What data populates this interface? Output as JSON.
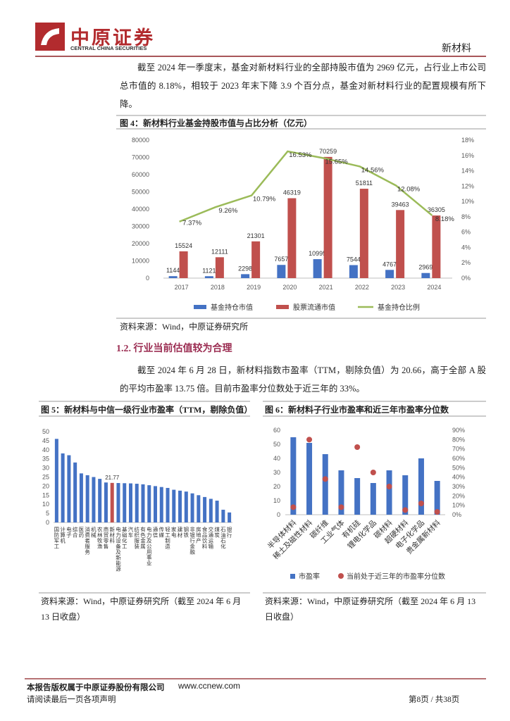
{
  "header": {
    "company": "中原证券",
    "company_en": "CENTRAL CHINA SECURITIES",
    "section": "新材料"
  },
  "paragraphs": [
    "截至 2024 年一季度末，基金对新材料行业的全部持股市值为 2969 亿元，占行业上市公司总市值的 8.18%，相较于 2023 年末下降 3.9 个百分点，基金对新材料行业的配置规模有所下降。",
    "截至 2024 年 6 月 28 日，新材料指数市盈率（TTM，剔除负值）为 20.66，高于全部 A 股的平均市盈率 13.75 倍。目前市盈率分位数处于近三年的 33%。"
  ],
  "section_heading": "1.2. 行业当前估值较为合理",
  "chart_data": [
    {
      "type": "bar-line",
      "title": "图 4：新材料行业基金持股市值与占比分析（亿元）",
      "source": "资料来源：Wind，中原证券研究所",
      "data_labels": true,
      "categories": [
        "2017",
        "2018",
        "2019",
        "2020",
        "2021",
        "2022",
        "2023",
        "2024"
      ],
      "series": [
        {
          "name": "基金持仓市值",
          "kind": "bar",
          "color": "#4472c4",
          "values": [
            1144,
            1121,
            2298,
            7657,
            10995,
            7544,
            4767,
            2969
          ]
        },
        {
          "name": "股票流通市值",
          "kind": "bar",
          "color": "#c0504d",
          "values": [
            15524,
            12111,
            21301,
            46319,
            70259,
            51811,
            39463,
            36305
          ]
        },
        {
          "name": "基金持仓比例",
          "kind": "line",
          "axis": "y2",
          "color": "#9bbb59",
          "values": [
            7.37,
            9.26,
            10.79,
            16.53,
            15.65,
            14.56,
            12.08,
            8.18
          ],
          "value_labels": [
            "7.37%",
            "9.26%",
            "10.79%",
            "16.53%",
            "15.65%",
            "14.56%",
            "12.08%",
            "8.18%"
          ]
        }
      ],
      "ylim": [
        0,
        80000
      ],
      "yticks": [
        0,
        10000,
        20000,
        30000,
        40000,
        50000,
        60000,
        70000,
        80000
      ],
      "y2lim": [
        0,
        18
      ],
      "y2ticks": [
        {
          "value": 0,
          "label": "0%"
        },
        {
          "value": 2,
          "label": "2%"
        },
        {
          "value": 4,
          "label": "4%"
        },
        {
          "value": 6,
          "label": "6%"
        },
        {
          "value": 8,
          "label": "8%"
        },
        {
          "value": 10,
          "label": "10%"
        },
        {
          "value": 12,
          "label": "12%"
        },
        {
          "value": 14,
          "label": "14%"
        },
        {
          "value": 16,
          "label": "16%"
        },
        {
          "value": 18,
          "label": "18%"
        }
      ]
    },
    {
      "type": "bar",
      "title": "图 5：新材料与中信一级行业市盈率（TTM，剔除负值）",
      "source": "资料来源：Wind，中原证券研究所（截至 2024 年 6 月 13 日收盘）",
      "categories": [
        "国防军工",
        "计算机",
        "电子",
        "综合",
        "医药",
        "消费者服务",
        "机械",
        "农林牧渔",
        "商贸零售",
        "新材料",
        "电力设备及新能源",
        "基础化工",
        "汽车",
        "纺织服装",
        "有色金属",
        "电力及公用事业",
        "通信",
        "传媒",
        "轻工制造",
        "家电",
        "建材",
        "钢铁",
        "非银行金融",
        "房地产",
        "食品饮料",
        "交通运输",
        "煤炭",
        "石油石化",
        "银行"
      ],
      "values": [
        46,
        38,
        37,
        33,
        27,
        26,
        25,
        24,
        22,
        21.77,
        21.7,
        21.6,
        21.5,
        21.3,
        21,
        20.5,
        20,
        19.5,
        19,
        18,
        17.5,
        17,
        16,
        15,
        14,
        13,
        12,
        7,
        5.5
      ],
      "value_labels": [
        null,
        null,
        null,
        null,
        null,
        null,
        null,
        null,
        null,
        "21.77",
        null,
        null,
        null,
        null,
        null,
        null,
        null,
        null,
        null,
        null,
        null,
        null,
        null,
        null,
        null,
        null,
        null,
        null,
        null
      ],
      "colors": [
        "#4472c4",
        "#4472c4",
        "#4472c4",
        "#4472c4",
        "#4472c4",
        "#4472c4",
        "#4472c4",
        "#4472c4",
        "#4472c4",
        "#c0504d",
        "#4472c4",
        "#4472c4",
        "#4472c4",
        "#4472c4",
        "#4472c4",
        "#4472c4",
        "#4472c4",
        "#4472c4",
        "#4472c4",
        "#4472c4",
        "#4472c4",
        "#4472c4",
        "#4472c4",
        "#4472c4",
        "#4472c4",
        "#4472c4",
        "#4472c4",
        "#4472c4",
        "#4472c4"
      ],
      "ylim": [
        0,
        50
      ],
      "yticks": [
        0,
        5,
        10,
        15,
        20,
        25,
        30,
        35,
        40,
        45,
        50
      ]
    },
    {
      "type": "bar-scatter",
      "title": "图 6：新材料子行业市盈率和近三年市盈率分位数",
      "source": "资料来源：Wind，中原证券研究所（截至 2024 年 6 月 13 日收盘）",
      "categories": [
        "半导体材料",
        "稀土及磁性材料",
        "碳纤维",
        "工业气体",
        "有机硅",
        "锂电化学品",
        "碳材料",
        "超硬材料",
        "电子化学品",
        "贵金属新材料"
      ],
      "series": [
        {
          "name": "市盈率",
          "kind": "bar",
          "color": "#4472c4",
          "values": [
            55,
            51,
            43,
            31.5,
            26,
            22.5,
            31.5,
            28,
            40,
            24
          ]
        },
        {
          "name": "当前处于近三年的市盈率分位数",
          "kind": "scatter",
          "axis": "y2",
          "color": "#c0504d",
          "values": [
            8,
            80,
            38,
            8,
            72,
            45,
            30,
            5,
            12,
            3
          ]
        }
      ],
      "ylim": [
        0,
        60
      ],
      "yticks": [
        0,
        10,
        20,
        30,
        40,
        50,
        60
      ],
      "y2lim": [
        0,
        90
      ],
      "y2ticks": [
        {
          "value": 0,
          "label": "0%"
        },
        {
          "value": 10,
          "label": "10%"
        },
        {
          "value": 20,
          "label": "20%"
        },
        {
          "value": 30,
          "label": "30%"
        },
        {
          "value": 40,
          "label": "40%"
        },
        {
          "value": 50,
          "label": "50%"
        },
        {
          "value": 60,
          "label": "60%"
        },
        {
          "value": 70,
          "label": "70%"
        },
        {
          "value": 80,
          "label": "80%"
        },
        {
          "value": 90,
          "label": "90%"
        }
      ]
    }
  ],
  "footer": {
    "copyright": "本报告版权属于中原证券股份有限公司",
    "url": "www.ccnew.com",
    "notice": "请阅读最后一页各项声明",
    "page": "第8页 / 共38页"
  }
}
